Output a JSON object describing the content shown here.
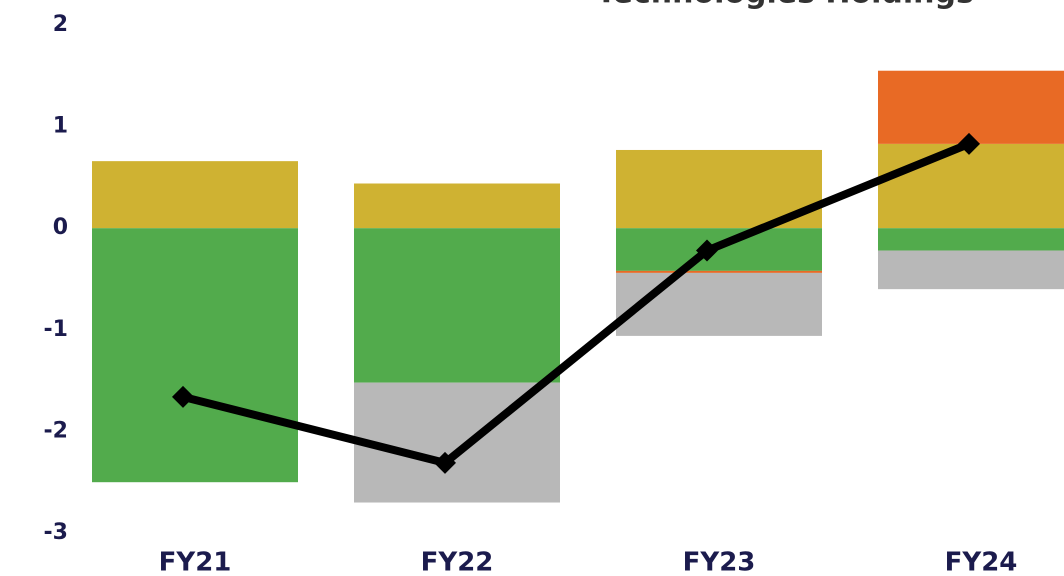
{
  "chart_data": {
    "type": "bar",
    "title": "Technologies Holdings",
    "categories": [
      "FY21",
      "FY22",
      "FY23",
      "FY24"
    ],
    "series": [
      {
        "color": "#cfb232",
        "values": [
          0.66,
          0.44,
          0.77,
          0.83
        ]
      },
      {
        "color": "#52ab4c",
        "values": [
          -2.5,
          -1.52,
          -0.42,
          -0.22
        ]
      },
      {
        "color": "#e86a25",
        "values": [
          0,
          0,
          -0.02,
          0.72
        ]
      },
      {
        "color": "#b8b8b8",
        "values": [
          0,
          -1.18,
          -0.62,
          -0.38
        ]
      }
    ],
    "line": {
      "color": "#000000",
      "values": [
        -1.66,
        -2.31,
        -0.22,
        0.83
      ]
    },
    "ylim": [
      -3,
      2
    ],
    "yticks": [
      -3,
      -2,
      -1,
      0,
      1,
      2
    ]
  }
}
